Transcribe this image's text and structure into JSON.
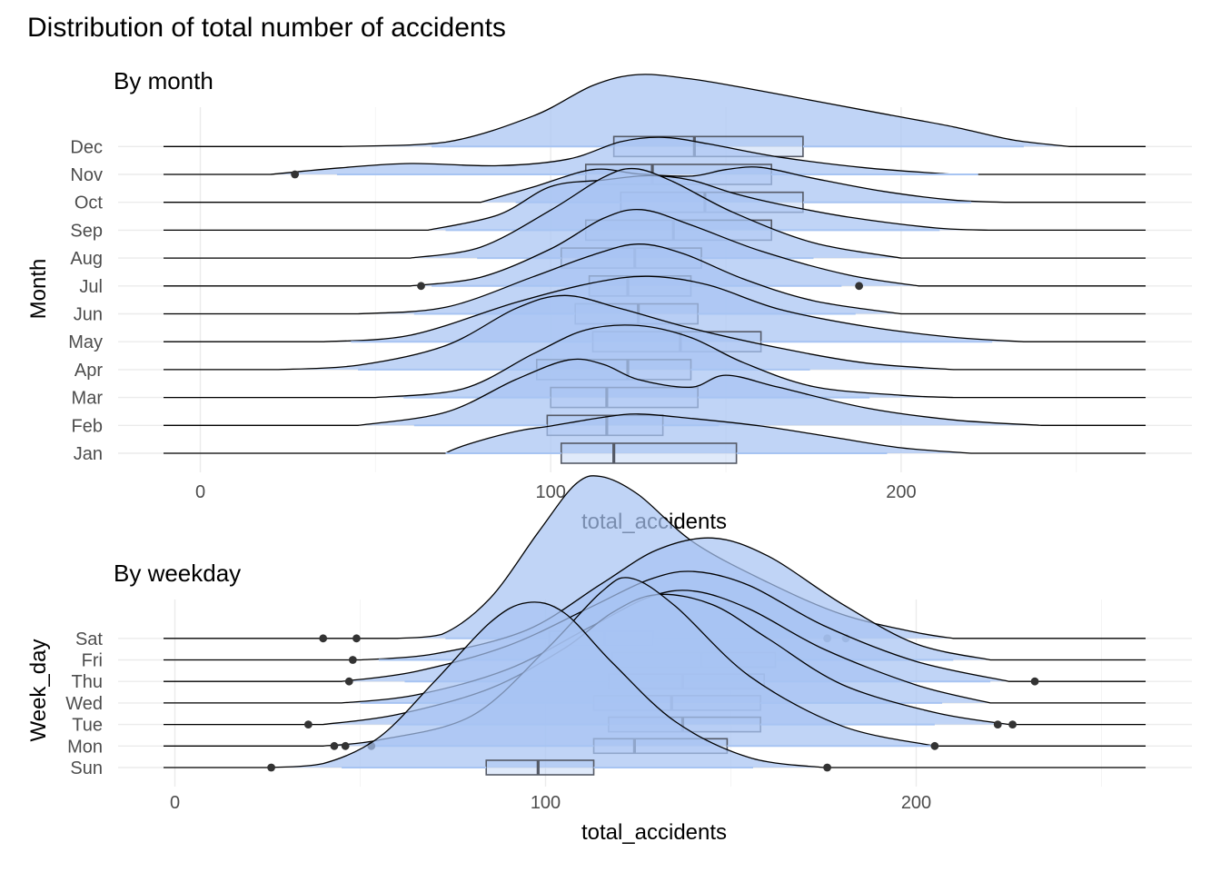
{
  "title": "Distribution of total number of accidents",
  "colors": {
    "fill": "#a7c4f2",
    "outline": "#000000",
    "box": "#555a66",
    "grid_major": "#ebebeb",
    "grid_minor": "#f4f4f4",
    "point": "#333333"
  },
  "chart_data": [
    {
      "type": "ridgeline-density-box",
      "subtitle": "By month",
      "xlabel": "total_accidents",
      "ylabel": "Month",
      "xlim": [
        -5,
        270
      ],
      "x_ticks": [
        0,
        100,
        200
      ],
      "categories": [
        "Jan",
        "Feb",
        "Mar",
        "Apr",
        "May",
        "Jun",
        "Jul",
        "Aug",
        "Sep",
        "Oct",
        "Nov",
        "Dec"
      ],
      "series": [
        {
          "name": "Jan",
          "density": [
            [
              70,
              0.04
            ],
            [
              90,
              0.2
            ],
            [
              100,
              0.25
            ],
            [
              115,
              0.33
            ],
            [
              125,
              0.36
            ],
            [
              140,
              0.32
            ],
            [
              160,
              0.25
            ],
            [
              180,
              0.15
            ],
            [
              200,
              0.05
            ],
            [
              220,
              0.0
            ]
          ],
          "box": {
            "q1": 103,
            "median": 118,
            "q3": 153,
            "low": 70,
            "high": 196
          },
          "outliers": []
        },
        {
          "name": "Feb",
          "density": [
            [
              45,
              0.0
            ],
            [
              70,
              0.12
            ],
            [
              90,
              0.42
            ],
            [
              105,
              0.6
            ],
            [
              115,
              0.56
            ],
            [
              125,
              0.42
            ],
            [
              140,
              0.35
            ],
            [
              150,
              0.46
            ],
            [
              165,
              0.35
            ],
            [
              190,
              0.16
            ],
            [
              215,
              0.05
            ],
            [
              240,
              0.0
            ]
          ],
          "box": {
            "q1": 99,
            "median": 116,
            "q3": 132,
            "low": 61,
            "high": 148
          },
          "outliers": []
        },
        {
          "name": "Mar",
          "density": [
            [
              50,
              0.0
            ],
            [
              75,
              0.08
            ],
            [
              95,
              0.4
            ],
            [
              110,
              0.62
            ],
            [
              125,
              0.66
            ],
            [
              140,
              0.55
            ],
            [
              155,
              0.32
            ],
            [
              175,
              0.1
            ],
            [
              200,
              0.02
            ],
            [
              215,
              0.0
            ]
          ],
          "box": {
            "q1": 100,
            "median": 116,
            "q3": 142,
            "low": 58,
            "high": 191
          },
          "outliers": []
        },
        {
          "name": "Apr",
          "density": [
            [
              22,
              0.0
            ],
            [
              45,
              0.04
            ],
            [
              70,
              0.22
            ],
            [
              90,
              0.56
            ],
            [
              104,
              0.68
            ],
            [
              120,
              0.56
            ],
            [
              140,
              0.38
            ],
            [
              165,
              0.2
            ],
            [
              190,
              0.06
            ],
            [
              215,
              0.0
            ]
          ],
          "box": {
            "q1": 96,
            "median": 122,
            "q3": 140,
            "low": 45,
            "high": 174
          },
          "outliers": []
        },
        {
          "name": "May",
          "density": [
            [
              35,
              0.0
            ],
            [
              60,
              0.06
            ],
            [
              90,
              0.36
            ],
            [
              112,
              0.54
            ],
            [
              128,
              0.6
            ],
            [
              145,
              0.52
            ],
            [
              165,
              0.3
            ],
            [
              190,
              0.14
            ],
            [
              215,
              0.04
            ],
            [
              235,
              0.0
            ]
          ],
          "box": {
            "q1": 112,
            "median": 137,
            "q3": 160,
            "low": 43,
            "high": 226
          },
          "outliers": []
        },
        {
          "name": "Jun",
          "density": [
            [
              45,
              0.0
            ],
            [
              70,
              0.06
            ],
            [
              95,
              0.34
            ],
            [
              112,
              0.54
            ],
            [
              125,
              0.64
            ],
            [
              138,
              0.55
            ],
            [
              155,
              0.32
            ],
            [
              175,
              0.12
            ],
            [
              200,
              0.0
            ]
          ],
          "box": {
            "q1": 107,
            "median": 125,
            "q3": 142,
            "low": 61,
            "high": 187
          },
          "outliers": []
        },
        {
          "name": "Jul",
          "density": [
            [
              60,
              0.0
            ],
            [
              80,
              0.08
            ],
            [
              100,
              0.34
            ],
            [
              115,
              0.62
            ],
            [
              126,
              0.7
            ],
            [
              140,
              0.56
            ],
            [
              160,
              0.32
            ],
            [
              185,
              0.1
            ],
            [
              205,
              0.0
            ]
          ],
          "box": {
            "q1": 111,
            "median": 122,
            "q3": 140,
            "low": 66,
            "high": 183
          },
          "outliers": [
            63,
            188
          ]
        },
        {
          "name": "Aug",
          "density": [
            [
              60,
              0.0
            ],
            [
              80,
              0.1
            ],
            [
              100,
              0.44
            ],
            [
              115,
              0.74
            ],
            [
              124,
              0.82
            ],
            [
              135,
              0.7
            ],
            [
              152,
              0.42
            ],
            [
              175,
              0.14
            ],
            [
              200,
              0.0
            ]
          ],
          "box": {
            "q1": 103,
            "median": 124,
            "q3": 143,
            "low": 79,
            "high": 175
          },
          "outliers": []
        },
        {
          "name": "Sep",
          "density": [
            [
              65,
              0.0
            ],
            [
              85,
              0.14
            ],
            [
              100,
              0.4
            ],
            [
              115,
              0.46
            ],
            [
              128,
              0.5
            ],
            [
              140,
              0.46
            ],
            [
              152,
              0.34
            ],
            [
              165,
              0.24
            ],
            [
              185,
              0.12
            ],
            [
              210,
              0.02
            ],
            [
              225,
              0.0
            ]
          ],
          "box": {
            "q1": 110,
            "median": 135,
            "q3": 163,
            "low": 70,
            "high": 211
          },
          "outliers": []
        },
        {
          "name": "Oct",
          "density": [
            [
              80,
              0.0
            ],
            [
              95,
              0.14
            ],
            [
              112,
              0.3
            ],
            [
              125,
              0.26
            ],
            [
              140,
              0.24
            ],
            [
              150,
              0.3
            ],
            [
              160,
              0.32
            ],
            [
              175,
              0.22
            ],
            [
              195,
              0.1
            ],
            [
              215,
              0.02
            ],
            [
              230,
              0.0
            ]
          ],
          "box": {
            "q1": 120,
            "median": 144,
            "q3": 172,
            "low": 90,
            "high": 220
          },
          "outliers": []
        },
        {
          "name": "Nov",
          "density": [
            [
              20,
              0.0
            ],
            [
              40,
              0.06
            ],
            [
              60,
              0.1
            ],
            [
              85,
              0.08
            ],
            [
              105,
              0.14
            ],
            [
              120,
              0.3
            ],
            [
              132,
              0.34
            ],
            [
              145,
              0.28
            ],
            [
              165,
              0.16
            ],
            [
              190,
              0.06
            ],
            [
              215,
              0.0
            ]
          ],
          "box": {
            "q1": 110,
            "median": 129,
            "q3": 163,
            "low": 39,
            "high": 222
          },
          "outliers": [
            27
          ]
        },
        {
          "name": "Dec",
          "density": [
            [
              40,
              0.0
            ],
            [
              70,
              0.04
            ],
            [
              95,
              0.28
            ],
            [
              112,
              0.56
            ],
            [
              125,
              0.66
            ],
            [
              140,
              0.62
            ],
            [
              155,
              0.54
            ],
            [
              175,
              0.42
            ],
            [
              195,
              0.3
            ],
            [
              215,
              0.18
            ],
            [
              232,
              0.06
            ],
            [
              248,
              0.0
            ]
          ],
          "box": {
            "q1": 118,
            "median": 141,
            "q3": 172,
            "low": 66,
            "high": 235
          },
          "outliers": []
        }
      ]
    },
    {
      "type": "ridgeline-density-box",
      "subtitle": "By weekday",
      "xlabel": "total_accidents",
      "ylabel": "Week_day",
      "xlim": [
        -3,
        265
      ],
      "x_ticks": [
        0,
        100,
        200
      ],
      "categories": [
        "Sun",
        "Mon",
        "Tue",
        "Wed",
        "Thu",
        "Fri",
        "Sat"
      ],
      "series": [
        {
          "name": "Sun",
          "density": [
            [
              25,
              0.0
            ],
            [
              40,
              0.04
            ],
            [
              55,
              0.3
            ],
            [
              70,
              0.86
            ],
            [
              85,
              1.45
            ],
            [
              95,
              1.65
            ],
            [
              105,
              1.55
            ],
            [
              118,
              1.05
            ],
            [
              135,
              0.46
            ],
            [
              155,
              0.1
            ],
            [
              175,
              0.0
            ]
          ],
          "box": {
            "q1": 84,
            "median": 98,
            "q3": 113,
            "low": 45,
            "high": 156
          },
          "outliers": [
            26,
            176
          ]
        },
        {
          "name": "Mon",
          "density": [
            [
              40,
              0.0
            ],
            [
              55,
              0.06
            ],
            [
              80,
              0.3
            ],
            [
              100,
              0.96
            ],
            [
              115,
              1.54
            ],
            [
              123,
              1.68
            ],
            [
              135,
              1.4
            ],
            [
              155,
              0.7
            ],
            [
              180,
              0.2
            ],
            [
              205,
              0.0
            ]
          ],
          "box": {
            "q1": 113,
            "median": 124,
            "q3": 149,
            "low": 52,
            "high": 205
          },
          "outliers": [
            43,
            46,
            53,
            205
          ]
        },
        {
          "name": "Tue",
          "density": [
            [
              40,
              0.0
            ],
            [
              60,
              0.1
            ],
            [
              85,
              0.36
            ],
            [
              105,
              0.76
            ],
            [
              118,
              1.12
            ],
            [
              130,
              1.3
            ],
            [
              145,
              1.2
            ],
            [
              160,
              0.86
            ],
            [
              180,
              0.4
            ],
            [
              205,
              0.12
            ],
            [
              225,
              0.0
            ]
          ],
          "box": {
            "q1": 117,
            "median": 137,
            "q3": 158,
            "low": 60,
            "high": 205
          },
          "outliers": [
            36,
            222,
            226
          ]
        },
        {
          "name": "Wed",
          "density": [
            [
              45,
              0.0
            ],
            [
              65,
              0.08
            ],
            [
              90,
              0.34
            ],
            [
              112,
              0.76
            ],
            [
              128,
              1.06
            ],
            [
              140,
              1.12
            ],
            [
              155,
              0.94
            ],
            [
              175,
              0.54
            ],
            [
              200,
              0.18
            ],
            [
              220,
              0.0
            ]
          ],
          "box": {
            "q1": 113,
            "median": 134,
            "q3": 158,
            "low": 50,
            "high": 207
          },
          "outliers": []
        },
        {
          "name": "Thu",
          "density": [
            [
              45,
              0.0
            ],
            [
              65,
              0.1
            ],
            [
              90,
              0.36
            ],
            [
              112,
              0.74
            ],
            [
              128,
              1.02
            ],
            [
              140,
              1.1
            ],
            [
              155,
              0.96
            ],
            [
              175,
              0.56
            ],
            [
              200,
              0.2
            ],
            [
              225,
              0.0
            ]
          ],
          "box": {
            "q1": 117,
            "median": 137,
            "q3": 159,
            "low": 62,
            "high": 220
          },
          "outliers": [
            47,
            232
          ]
        },
        {
          "name": "Fri",
          "density": [
            [
              50,
              0.0
            ],
            [
              70,
              0.06
            ],
            [
              95,
              0.3
            ],
            [
              115,
              0.76
            ],
            [
              130,
              1.1
            ],
            [
              145,
              1.22
            ],
            [
              160,
              1.04
            ],
            [
              180,
              0.56
            ],
            [
              200,
              0.16
            ],
            [
              220,
              0.0
            ]
          ],
          "box": {
            "q1": 118,
            "median": 142,
            "q3": 162,
            "low": 55,
            "high": 210
          },
          "outliers": [
            48
          ]
        },
        {
          "name": "Sat",
          "density": [
            [
              60,
              0.0
            ],
            [
              72,
              0.04
            ],
            [
              85,
              0.4
            ],
            [
              98,
              1.06
            ],
            [
              108,
              1.54
            ],
            [
              115,
              1.62
            ],
            [
              125,
              1.44
            ],
            [
              140,
              0.96
            ],
            [
              160,
              0.56
            ],
            [
              180,
              0.24
            ],
            [
              200,
              0.06
            ],
            [
              210,
              0.0
            ]
          ],
          "box": {
            "q1": 101,
            "median": 116,
            "q3": 129,
            "low": 73,
            "high": 160
          },
          "outliers": [
            40,
            49,
            176,
            181
          ]
        }
      ]
    }
  ]
}
